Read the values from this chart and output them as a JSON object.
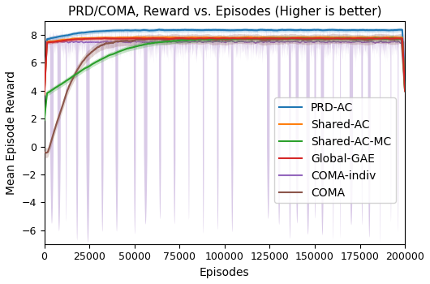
{
  "title": "PRD/COMA, Reward vs. Episodes (Higher is better)",
  "xlabel": "Episodes",
  "ylabel": "Mean Episode Reward",
  "xlim": [
    0,
    200000
  ],
  "ylim": [
    -7,
    9
  ],
  "yticks": [
    -6,
    -4,
    -2,
    0,
    2,
    4,
    6,
    8
  ],
  "xticks": [
    0,
    25000,
    50000,
    75000,
    100000,
    125000,
    150000,
    175000,
    200000
  ],
  "legend_labels": [
    "PRD-AC",
    "Shared-AC",
    "Shared-AC-MC",
    "Global-GAE",
    "COMA-indiv",
    "COMA"
  ],
  "line_colors": {
    "PRD-AC": "#1f77b4",
    "Shared-AC": "#ff7f0e",
    "Shared-AC-MC": "#2ca02c",
    "Global-GAE": "#d62728",
    "COMA-indiv": "#9467bd",
    "COMA": "#8c564b"
  },
  "background_color": "#ffffff",
  "title_fontsize": 11,
  "label_fontsize": 10,
  "tick_fontsize": 9,
  "legend_fontsize": 10,
  "figsize": [
    5.3,
    3.5
  ],
  "dpi": 100
}
